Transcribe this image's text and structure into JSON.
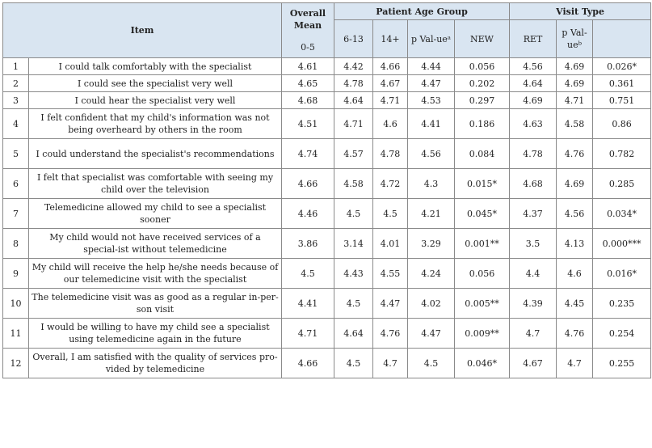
{
  "headers": {
    "item": "Item",
    "overall_title": "Overall Mean",
    "overall_range": "0-5",
    "age_group": "Patient Age Group",
    "visit_type": "Visit Type",
    "age_6_13": "6-13",
    "age_14": "14+",
    "p_value_a": "p Val-ueᵃ",
    "new": "NEW",
    "ret": "RET",
    "p_value_b": "p Val-ueᵇ"
  },
  "rows": [
    {
      "num": "1",
      "item": "I could talk comfortably with the specialist",
      "overall": "4.61",
      "age_6_13": "4.42",
      "age_14": "4.66",
      "p_a": "4.44",
      "new": "0.056",
      "ret": "4.56",
      "p_b": "4.69",
      "last": "0.026*"
    },
    {
      "num": "2",
      "item": "I could see the specialist very well",
      "overall": "4.65",
      "age_6_13": "4.78",
      "age_14": "4.67",
      "p_a": "4.47",
      "new": "0.202",
      "ret": "4.64",
      "p_b": "4.69",
      "last": "0.361"
    },
    {
      "num": "3",
      "item": "I could hear the specialist very well",
      "overall": "4.68",
      "age_6_13": "4.64",
      "age_14": "4.71",
      "p_a": "4.53",
      "new": "0.297",
      "ret": "4.69",
      "p_b": "4.71",
      "last": "0.751"
    },
    {
      "num": "4",
      "item": "I felt confident that my child's information was not being overheard by others in the room",
      "overall": "4.51",
      "age_6_13": "4.71",
      "age_14": "4.6",
      "p_a": "4.41",
      "new": "0.186",
      "ret": "4.63",
      "p_b": "4.58",
      "last": "0.86"
    },
    {
      "num": "5",
      "item": "I could understand the specialist's recommendations",
      "overall": "4.74",
      "age_6_13": "4.57",
      "age_14": "4.78",
      "p_a": "4.56",
      "new": "0.084",
      "ret": "4.78",
      "p_b": "4.76",
      "last": "0.782"
    },
    {
      "num": "6",
      "item": "I felt that specialist was comfortable with seeing my child over the television",
      "overall": "4.66",
      "age_6_13": "4.58",
      "age_14": "4.72",
      "p_a": "4.3",
      "new": "0.015*",
      "ret": "4.68",
      "p_b": "4.69",
      "last": "0.285"
    },
    {
      "num": "7",
      "item": "Telemedicine allowed my child to see a specialist sooner",
      "overall": "4.46",
      "age_6_13": "4.5",
      "age_14": "4.5",
      "p_a": "4.21",
      "new": "0.045*",
      "ret": "4.37",
      "p_b": "4.56",
      "last": "0.034*"
    },
    {
      "num": "8",
      "item": "My child would not have received services of a special-ist without telemedicine",
      "overall": "3.86",
      "age_6_13": "3.14",
      "age_14": "4.01",
      "p_a": "3.29",
      "new": "0.001**",
      "ret": "3.5",
      "p_b": "4.13",
      "last": "0.000***"
    },
    {
      "num": "9",
      "item": "My child will receive the help he/she needs because of our telemedicine visit with the specialist",
      "overall": "4.5",
      "age_6_13": "4.43",
      "age_14": "4.55",
      "p_a": "4.24",
      "new": "0.056",
      "ret": "4.4",
      "p_b": "4.6",
      "last": "0.016*"
    },
    {
      "num": "10",
      "item": "The telemedicine visit was as good as a regular in-per-son visit",
      "overall": "4.41",
      "age_6_13": "4.5",
      "age_14": "4.47",
      "p_a": "4.02",
      "new": "0.005**",
      "ret": "4.39",
      "p_b": "4.45",
      "last": "0.235"
    },
    {
      "num": "11",
      "item": "I would be willing to have my child see a specialist using telemedicine again in the future",
      "overall": "4.71",
      "age_6_13": "4.64",
      "age_14": "4.76",
      "p_a": "4.47",
      "new": "0.009**",
      "ret": "4.7",
      "p_b": "4.76",
      "last": "0.254"
    },
    {
      "num": "12",
      "item": "Overall, I am satisfied with the quality of services pro-vided by telemedicine",
      "overall": "4.66",
      "age_6_13": "4.5",
      "age_14": "4.7",
      "p_a": "4.5",
      "new": "0.046*",
      "ret": "4.67",
      "p_b": "4.7",
      "last": "0.255"
    }
  ]
}
